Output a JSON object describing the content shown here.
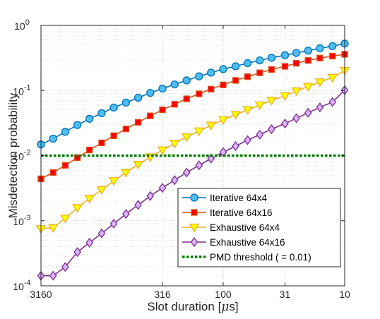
{
  "chart_data": {
    "type": "line",
    "xlabel_main": "Slot duration [",
    "xlabel_unit_symbol": "μ",
    "xlabel_unit_rest": "s]",
    "ylabel": "Misdetection probability",
    "x_scale": "log",
    "x_reversed": true,
    "xlim": [
      3160,
      10
    ],
    "ylim": [
      0.0001,
      1
    ],
    "y_scale": "log",
    "grid": true,
    "legend_position": "bottom-right",
    "x_ticks": [
      {
        "value": 3160,
        "label": "3160"
      },
      {
        "value": 316,
        "label": "316"
      },
      {
        "value": 100,
        "label": "100"
      },
      {
        "value": 31,
        "label": "31"
      },
      {
        "value": 10,
        "label": "10"
      }
    ],
    "y_ticks": [
      {
        "value": 0.0001,
        "base": "10",
        "exp": "-4"
      },
      {
        "value": 0.001,
        "base": "10",
        "exp": "-3"
      },
      {
        "value": 0.01,
        "base": "10",
        "exp": "-2"
      },
      {
        "value": 0.1,
        "base": "10",
        "exp": "-1"
      },
      {
        "value": 1,
        "base": "10",
        "exp": "0"
      }
    ],
    "x": [
      3160,
      2510,
      1995,
      1585,
      1260,
      1000,
      795,
      631,
      501,
      398,
      316,
      251,
      200,
      158,
      126,
      100,
      79,
      63,
      50,
      40,
      31,
      25,
      20,
      16,
      12.6,
      10
    ],
    "series": [
      {
        "name": "Iterative 64x4",
        "color": "#0072BD",
        "fill": "#4DBEEE",
        "marker": "circle",
        "values": [
          0.0148,
          0.0182,
          0.0232,
          0.0295,
          0.0368,
          0.0448,
          0.0548,
          0.0652,
          0.0775,
          0.092,
          0.107,
          0.124,
          0.143,
          0.165,
          0.188,
          0.213,
          0.236,
          0.263,
          0.29,
          0.318,
          0.348,
          0.378,
          0.41,
          0.445,
          0.48,
          0.525
        ]
      },
      {
        "name": "Iterative 64x16",
        "color": "#D95319",
        "fill": "#FF0000",
        "marker": "square",
        "values": [
          0.0044,
          0.0055,
          0.0071,
          0.0093,
          0.0122,
          0.0157,
          0.0202,
          0.0257,
          0.0325,
          0.0408,
          0.0505,
          0.0615,
          0.0745,
          0.089,
          0.105,
          0.122,
          0.143,
          0.163,
          0.187,
          0.21,
          0.235,
          0.262,
          0.29,
          0.315,
          0.338,
          0.36
        ]
      },
      {
        "name": "Exhaustive 64x4",
        "color": "#EDB120",
        "fill": "#FFFF00",
        "marker": "triangle-down",
        "values": [
          0.00075,
          0.00078,
          0.00109,
          0.00158,
          0.0022,
          0.003,
          0.0041,
          0.0055,
          0.0073,
          0.0095,
          0.0122,
          0.0154,
          0.0193,
          0.0238,
          0.0292,
          0.0355,
          0.0425,
          0.0505,
          0.0598,
          0.0705,
          0.083,
          0.098,
          0.115,
          0.135,
          0.158,
          0.202
        ]
      },
      {
        "name": "Exhaustive 64x16",
        "color": "#7E2F8E",
        "fill": "#D9B3FF",
        "marker": "diamond",
        "values": [
          0.000143,
          0.000143,
          0.000195,
          0.00033,
          0.00046,
          0.00064,
          0.0009,
          0.00127,
          0.00175,
          0.0024,
          0.0032,
          0.0042,
          0.0055,
          0.0071,
          0.009,
          0.0113,
          0.014,
          0.0173,
          0.021,
          0.0255,
          0.031,
          0.0375,
          0.0455,
          0.055,
          0.0665,
          0.101
        ]
      },
      {
        "name": "PMD threshold ( = 0.01)",
        "color": "#008000",
        "marker": "none",
        "dashed": true,
        "constant": 0.01
      }
    ]
  }
}
